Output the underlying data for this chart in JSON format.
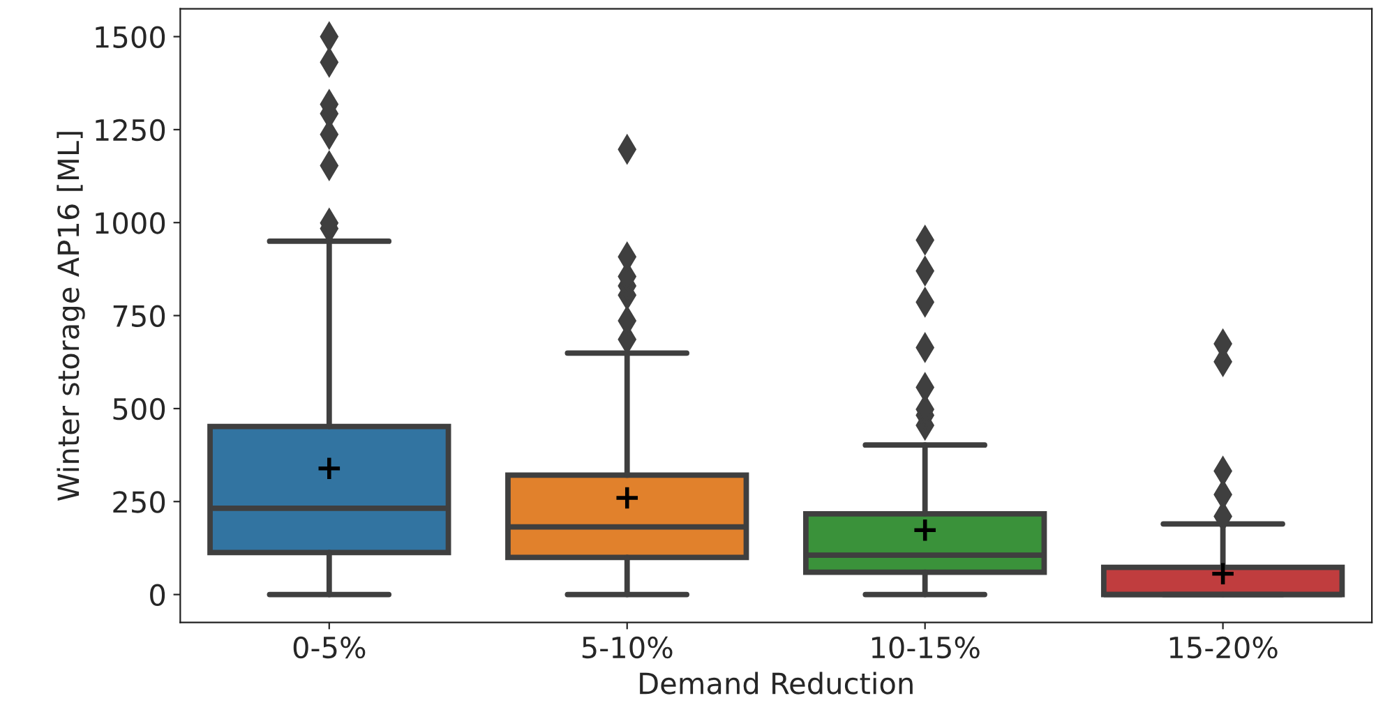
{
  "chart_data": {
    "type": "box",
    "xlabel": "Demand Reduction",
    "ylabel": "Winter storage AP16 [ML]",
    "categories": [
      "0-5%",
      "5-10%",
      "10-15%",
      "15-20%"
    ],
    "colors": [
      "#3274a1",
      "#e1812c",
      "#3a923a",
      "#c03d3e"
    ],
    "boxes": [
      {
        "low": 0,
        "q1": 113,
        "median": 232,
        "q3": 452,
        "high": 950,
        "mean": 339,
        "outliers": [
          984,
          999,
          1153,
          1237,
          1293,
          1318,
          1431,
          1500
        ]
      },
      {
        "low": 0,
        "q1": 100,
        "median": 182,
        "q3": 321,
        "high": 649,
        "mean": 260,
        "outliers": [
          686,
          736,
          805,
          830,
          855,
          908,
          1197
        ]
      },
      {
        "low": 0,
        "q1": 60,
        "median": 106,
        "q3": 217,
        "high": 402,
        "mean": 173,
        "outliers": [
          455,
          482,
          498,
          557,
          664,
          786,
          870,
          953
        ]
      },
      {
        "low": 0,
        "q1": 0,
        "median": 0,
        "q3": 73,
        "high": 190,
        "mean": 56,
        "outliers": [
          210,
          269,
          332,
          626,
          674
        ]
      }
    ],
    "ylim": [
      -75,
      1575
    ],
    "yticks": [
      0,
      250,
      500,
      750,
      1000,
      1250,
      1500
    ],
    "marker": "diamond",
    "grid": false
  }
}
